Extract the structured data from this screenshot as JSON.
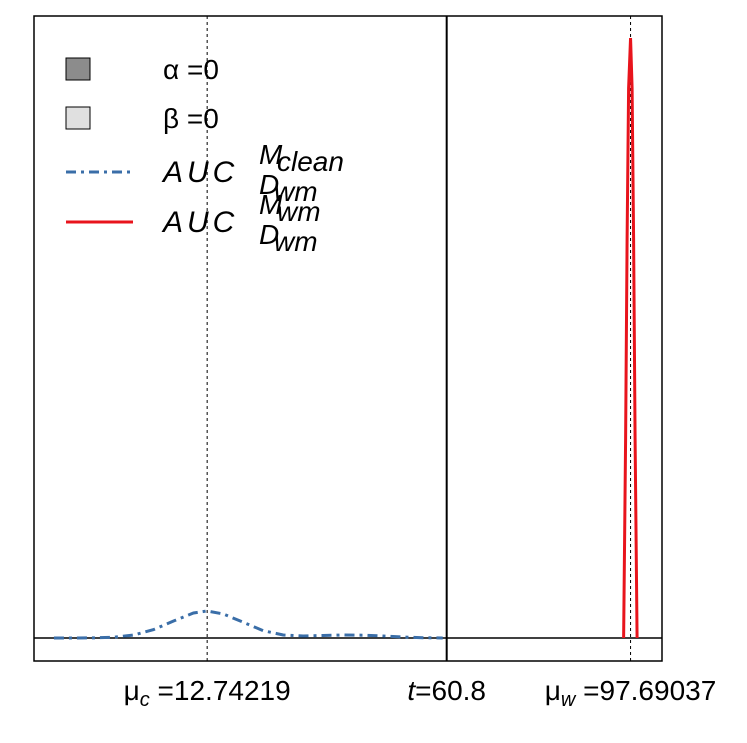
{
  "chart_data": {
    "type": "density",
    "xlim": [
      -22,
      104
    ],
    "ylim": [
      -0.023,
      0.622
    ],
    "series": [
      {
        "name": "AUC",
        "name_sup": "M",
        "name_sup_sub": "clean",
        "name_sub": "D",
        "name_sub_sub": "wm",
        "color": "#3a6ea8",
        "dash": "10 5 3 5",
        "x": [
          -18,
          -14,
          -10,
          -6,
          -2,
          2,
          6,
          10,
          12.7,
          16,
          20,
          24,
          28,
          32,
          36,
          40,
          44,
          48,
          52,
          56,
          60
        ],
        "values": [
          0,
          0,
          0.0001,
          0.0008,
          0.003,
          0.0084,
          0.017,
          0.025,
          0.027,
          0.024,
          0.0157,
          0.0073,
          0.003,
          0.002,
          0.0025,
          0.003,
          0.0028,
          0.002,
          0.001,
          0.0003,
          0
        ]
      },
      {
        "name": "AUC",
        "name_sup": "M",
        "name_sup_sub": "wm",
        "name_sub": "D",
        "name_sub_sub": "wm",
        "color": "#e8141c",
        "dash": "none",
        "x": [
          96.3,
          96.7,
          97.0,
          97.3,
          97.69,
          98.0,
          98.3,
          98.6,
          99.0
        ],
        "values": [
          0,
          0.2,
          0.4,
          0.55,
          0.6,
          0.55,
          0.4,
          0.2,
          0
        ]
      }
    ],
    "legend_boxes": [
      {
        "label": "α =0",
        "color": "#8c8c8c"
      },
      {
        "label": "β =0",
        "color": "#e0e0e0"
      }
    ],
    "markers": [
      {
        "symbol": "μ",
        "sub": "c",
        "label": " =12.74219",
        "value": 12.74219,
        "style": "dotted"
      },
      {
        "symbol": "t",
        "sub": "",
        "label": "=60.8",
        "value": 60.8,
        "style": "solid"
      },
      {
        "symbol": "μ",
        "sub": "w",
        "label": " =97.69037",
        "value": 97.69037,
        "style": "dotted"
      }
    ]
  }
}
